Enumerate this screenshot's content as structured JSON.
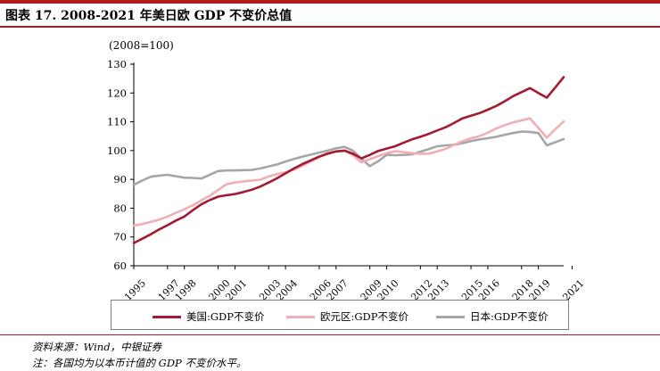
{
  "header": {
    "title": "图表 17. 2008-2021 年美日欧 GDP 不变价总值",
    "unit": "(2008=100)"
  },
  "footer": {
    "source": "资料来源：Wind，中银证券",
    "note": "注：各国均为以本币计值的 GDP 不变价水平。"
  },
  "colors": {
    "accent": "#b0191e",
    "us": "#a31a34",
    "eu": "#f0b0b3",
    "jp": "#a6a6a6"
  },
  "chart_data": {
    "type": "line",
    "title": "图表 17. 2008-2021 年美日欧 GDP 不变价总值",
    "ylabel": "(2008=100)",
    "ylim": [
      60,
      130
    ],
    "yticks": [
      "60",
      "70",
      "80",
      "90",
      "100",
      "110",
      "120",
      "130"
    ],
    "x_tick_labels": [
      "1995",
      "1997",
      "1998",
      "2000",
      "2001",
      "2003",
      "2004",
      "2006",
      "2007",
      "2009",
      "2010",
      "2012",
      "2013",
      "2015",
      "2016",
      "2018",
      "2019",
      "2021"
    ],
    "x_start": 1995.0,
    "x_step": 0.5,
    "grid": false,
    "legend_position": "bottom",
    "series": [
      {
        "name": "美国:GDP不变价",
        "values": [
          67.9,
          69.4,
          70.9,
          72.6,
          74.1,
          75.7,
          77.1,
          79.3,
          81.3,
          82.8,
          84.0,
          84.5,
          84.9,
          85.6,
          86.4,
          87.5,
          88.9,
          90.4,
          92.1,
          93.8,
          95.3,
          96.6,
          97.9,
          98.9,
          99.7,
          100.0,
          98.9,
          97.3,
          98.5,
          99.9,
          100.7,
          101.5,
          102.7,
          103.9,
          104.8,
          105.8,
          107.0,
          108.1,
          109.6,
          111.2,
          112.1,
          113.0,
          114.2,
          115.5,
          117.1,
          118.9,
          120.3,
          121.7,
          120.0,
          118.4,
          121.9,
          125.5
        ]
      },
      {
        "name": "欧元区:GDP不变价",
        "values": [
          73.9,
          74.5,
          75.2,
          76.0,
          77.1,
          78.4,
          79.6,
          81.0,
          82.7,
          84.3,
          86.3,
          88.3,
          88.9,
          89.3,
          89.6,
          89.9,
          91.0,
          91.8,
          92.5,
          93.4,
          94.7,
          96.2,
          97.8,
          99.2,
          99.7,
          100.0,
          98.4,
          95.9,
          97.0,
          98.1,
          99.1,
          99.8,
          99.5,
          99.1,
          98.9,
          98.9,
          99.7,
          100.6,
          102.0,
          103.3,
          104.3,
          105.0,
          106.2,
          107.7,
          108.8,
          109.8,
          110.5,
          111.2,
          107.9,
          104.5,
          107.4,
          110.1
        ]
      },
      {
        "name": "日本:GDP不变价",
        "values": [
          88.1,
          89.6,
          90.9,
          91.3,
          91.6,
          91.1,
          90.6,
          90.5,
          90.3,
          91.6,
          92.9,
          93.1,
          93.1,
          93.2,
          93.3,
          93.8,
          94.5,
          95.2,
          96.2,
          97.1,
          97.9,
          98.6,
          99.3,
          100.0,
          100.8,
          101.3,
          100.0,
          97.2,
          94.6,
          96.3,
          98.5,
          98.4,
          98.5,
          98.7,
          99.6,
          100.5,
          101.5,
          101.8,
          102.0,
          102.6,
          103.3,
          103.9,
          104.3,
          104.8,
          105.5,
          106.1,
          106.6,
          106.5,
          106.1,
          101.8,
          102.9,
          104.0
        ]
      }
    ]
  }
}
